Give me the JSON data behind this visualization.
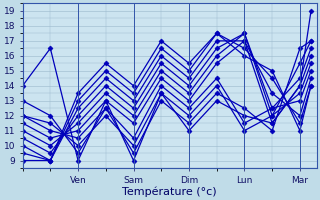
{
  "background_color": "#c0dce8",
  "plot_bg_color": "#cce4f0",
  "grid_color": "#9ab8cc",
  "line_color": "#0000bb",
  "marker": "D",
  "markersize": 2.5,
  "linewidth": 0.9,
  "ylim": [
    8.5,
    19.5
  ],
  "yticks": [
    9,
    10,
    11,
    12,
    13,
    14,
    15,
    16,
    17,
    18,
    19
  ],
  "xlabel": "Température (°c)",
  "xlabel_fontsize": 8,
  "tick_fontsize": 6.5,
  "day_labels": [
    "Ven",
    "Sam",
    "Dim",
    "Lun",
    "Mar"
  ],
  "day_positions": [
    1,
    2,
    3,
    4,
    5
  ],
  "xlim": [
    0,
    5.3
  ],
  "series": [
    {
      "xs": [
        0.0,
        0.5,
        1.0,
        1.5,
        2.0,
        2.5,
        3.0,
        3.5,
        4.0,
        4.5,
        5.0,
        5.2
      ],
      "ys": [
        14.0,
        16.5,
        9.0,
        13.0,
        9.0,
        13.5,
        11.0,
        13.0,
        12.0,
        11.5,
        14.0,
        19.0
      ]
    },
    {
      "xs": [
        0.0,
        0.5,
        1.0,
        1.5,
        2.0,
        2.5,
        3.0,
        3.5,
        4.0,
        4.5,
        5.0,
        5.2
      ],
      "ys": [
        13.0,
        12.0,
        9.5,
        12.5,
        9.5,
        13.0,
        11.5,
        13.5,
        12.5,
        11.0,
        16.5,
        17.0
      ]
    },
    {
      "xs": [
        0.0,
        0.5,
        1.0,
        1.5,
        2.0,
        2.5,
        3.0,
        3.5,
        4.0,
        4.5,
        5.0,
        5.2
      ],
      "ys": [
        12.0,
        11.5,
        10.0,
        12.0,
        10.0,
        13.5,
        12.0,
        14.0,
        11.0,
        12.0,
        15.5,
        17.0
      ]
    },
    {
      "xs": [
        0.0,
        0.5,
        1.0,
        1.5,
        2.0,
        2.5,
        3.0,
        3.5,
        4.0,
        4.5,
        5.0,
        5.2
      ],
      "ys": [
        12.0,
        11.0,
        10.5,
        12.5,
        10.5,
        14.0,
        12.5,
        14.5,
        11.5,
        12.5,
        14.5,
        16.5
      ]
    },
    {
      "xs": [
        0.0,
        0.5,
        1.0,
        1.5,
        2.0,
        2.5,
        3.0,
        3.5,
        4.0,
        4.5,
        5.0,
        5.2
      ],
      "ys": [
        11.5,
        10.5,
        11.0,
        13.0,
        11.5,
        14.5,
        13.0,
        15.5,
        17.0,
        11.5,
        14.0,
        16.0
      ]
    },
    {
      "xs": [
        0.0,
        0.5,
        1.0,
        1.5,
        2.0,
        2.5,
        3.0,
        3.5,
        4.0,
        4.5,
        5.0,
        5.2
      ],
      "ys": [
        11.0,
        10.0,
        11.5,
        13.5,
        12.0,
        15.0,
        13.5,
        16.0,
        17.5,
        12.0,
        13.5,
        15.5
      ]
    },
    {
      "xs": [
        0.0,
        0.5,
        1.0,
        1.5,
        2.0,
        2.5,
        3.0,
        3.5,
        4.0,
        4.5,
        5.0,
        5.2
      ],
      "ys": [
        10.5,
        9.5,
        12.0,
        14.0,
        12.5,
        15.5,
        14.0,
        16.5,
        17.5,
        12.5,
        13.0,
        15.0
      ]
    },
    {
      "xs": [
        0.0,
        0.5,
        1.0,
        1.5,
        2.0,
        2.5,
        3.0,
        3.5,
        4.0,
        4.5,
        5.0,
        5.2
      ],
      "ys": [
        10.0,
        9.0,
        12.5,
        14.5,
        13.0,
        16.0,
        14.5,
        17.0,
        17.0,
        13.5,
        12.0,
        14.5
      ]
    },
    {
      "xs": [
        0.0,
        0.5,
        1.0,
        1.5,
        2.0,
        2.5,
        3.0,
        3.5,
        4.0,
        4.5,
        5.0,
        5.2
      ],
      "ys": [
        9.5,
        9.0,
        13.0,
        15.0,
        13.5,
        16.5,
        15.0,
        17.5,
        16.5,
        14.5,
        11.5,
        14.0
      ]
    },
    {
      "xs": [
        0.0,
        0.5,
        1.0,
        1.5,
        2.0,
        2.5,
        3.0,
        3.5,
        4.0,
        4.5,
        5.0,
        5.2
      ],
      "ys": [
        9.0,
        9.0,
        13.5,
        15.5,
        14.0,
        17.0,
        15.5,
        17.5,
        16.0,
        15.0,
        11.0,
        14.0
      ]
    }
  ]
}
